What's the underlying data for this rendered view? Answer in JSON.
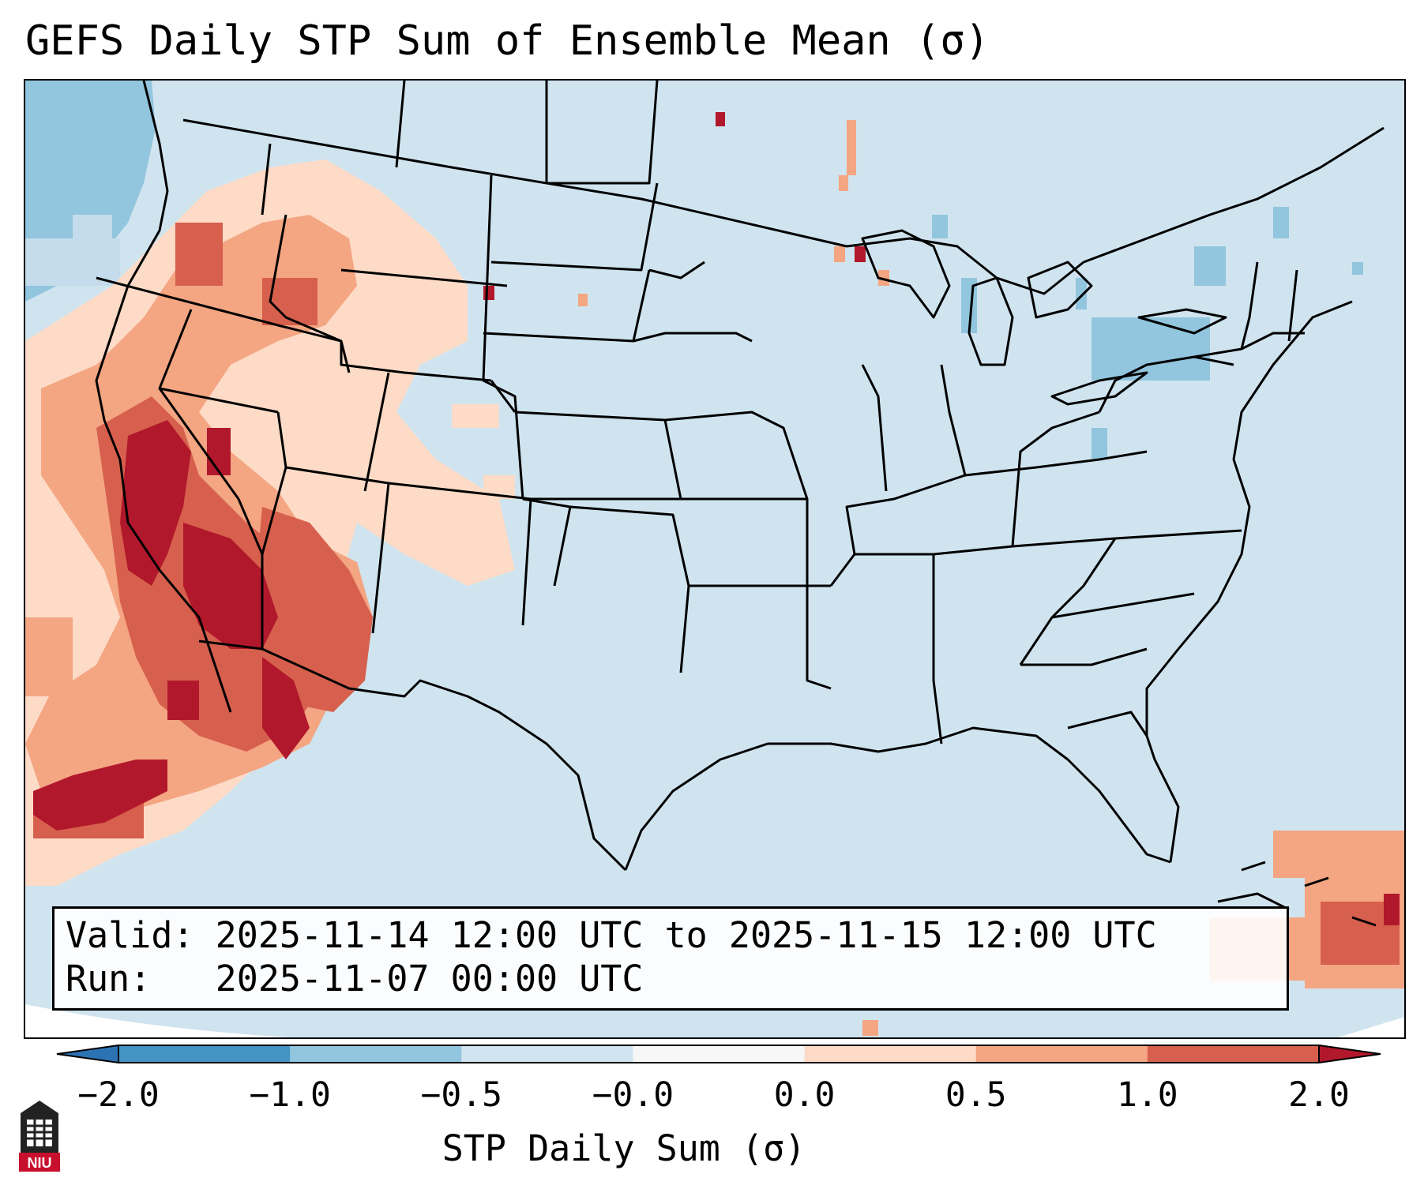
{
  "title": "GEFS Daily STP Sum of Ensemble Mean (σ)",
  "valid_text": "Valid: 2025-11-14 12:00 UTC to 2025-11-15 12:00 UTC",
  "run_text": "Run:   2025-11-07 00:00 UTC",
  "colorbar": {
    "ticks": [
      "−2.0",
      "−1.0",
      "−0.5",
      "−0.0",
      "0.0",
      "0.5",
      "1.0",
      "2.0"
    ],
    "colors": [
      "#2c73b4",
      "#4393c3",
      "#92c5de",
      "#d1e5f0",
      "#f7f7f7",
      "#fddbc7",
      "#f4a582",
      "#d6604d",
      "#b2182b"
    ],
    "label": "STP Daily Sum (σ)"
  },
  "map": {
    "background_color": "#d0e4ef",
    "border_color": "#000000",
    "region": "Contiguous United States"
  },
  "logo_text": "NIU"
}
